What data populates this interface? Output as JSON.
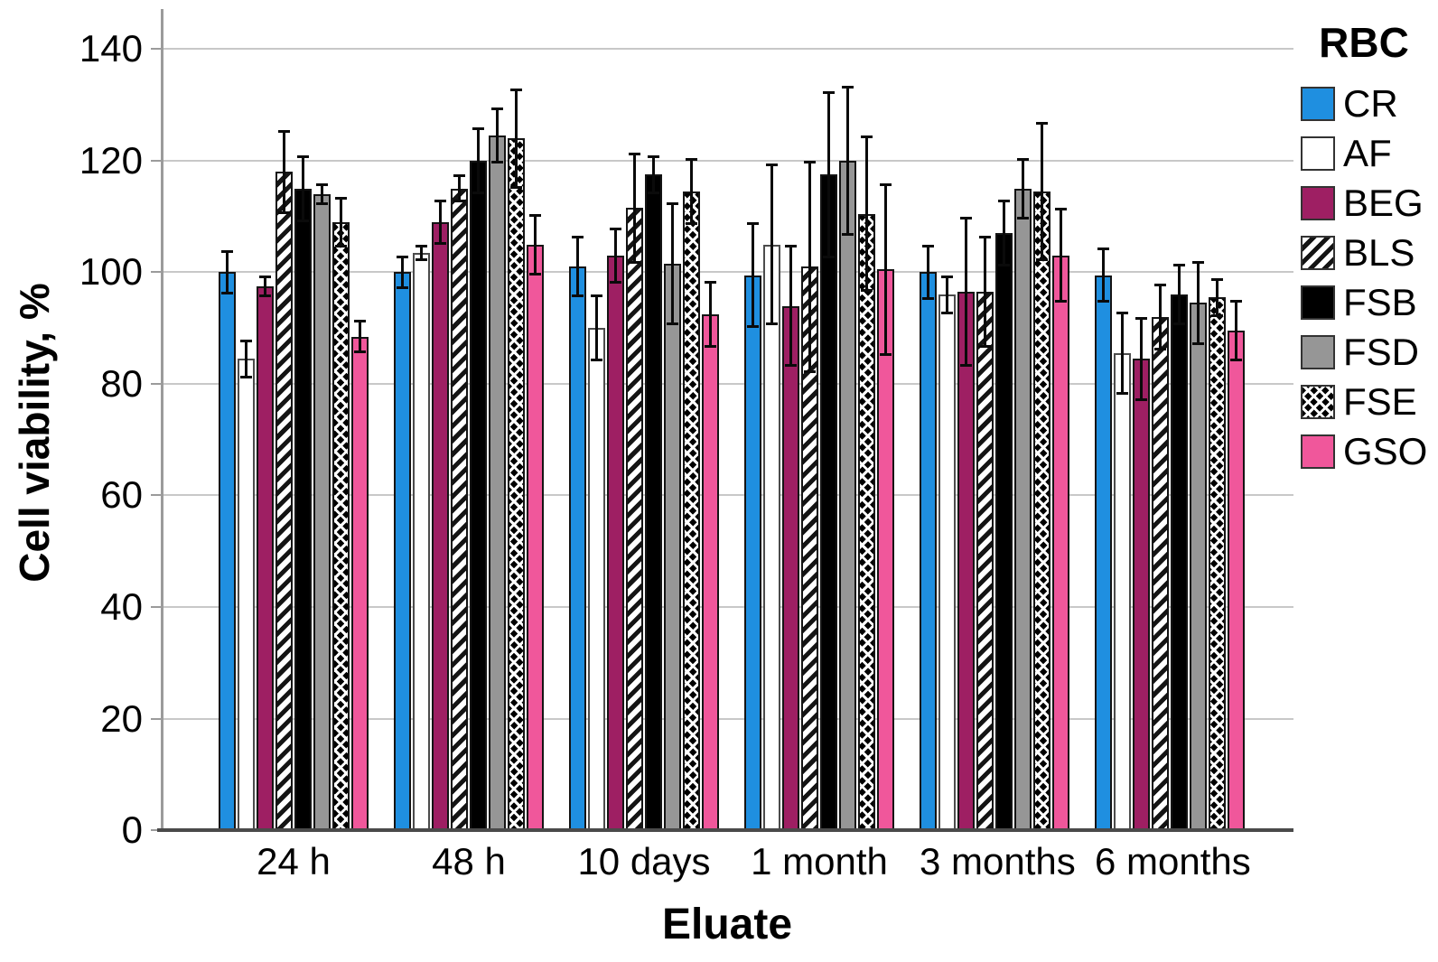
{
  "chart_data": {
    "type": "bar",
    "title": "",
    "xlabel": "Eluate",
    "ylabel": "Cell viability, %",
    "legend_title": "RBC",
    "legend_position": "right",
    "grid": true,
    "ylim": [
      0,
      140
    ],
    "yticks": [
      0,
      20,
      40,
      60,
      80,
      100,
      120,
      140
    ],
    "categories": [
      "24 h",
      "48 h",
      "10 days",
      "1 month",
      "3 months",
      "6 months"
    ],
    "series": [
      {
        "name": "CR",
        "fill": "#1F8FE0",
        "border": "#141414",
        "values": [
          100,
          100,
          101,
          99.5,
          100,
          99.5
        ],
        "errors": [
          4,
          3,
          5.5,
          9.5,
          5,
          5
        ]
      },
      {
        "name": "AF",
        "fill": "#FFFFFF",
        "border": "#4C4C4C",
        "values": [
          84.5,
          103.5,
          90,
          105,
          96,
          85.5
        ],
        "errors": [
          3.5,
          1.5,
          6,
          14.5,
          3.5,
          7.5
        ]
      },
      {
        "name": "BEG",
        "fill": "#9E1F63",
        "border": "#141414",
        "values": [
          97.5,
          109,
          103,
          94,
          96.5,
          84.5
        ],
        "errors": [
          2,
          4,
          5,
          11,
          13.5,
          7.5
        ]
      },
      {
        "name": "BLS",
        "pattern": "diagonal-stripes",
        "border": "#141414",
        "values": [
          118,
          115,
          111.5,
          101,
          96.5,
          92
        ],
        "errors": [
          7.5,
          2.5,
          10,
          19,
          10,
          6
        ]
      },
      {
        "name": "FSB",
        "fill": "#000000",
        "border": "#141414",
        "values": [
          115,
          120,
          117.5,
          117.5,
          107,
          96
        ],
        "errors": [
          6,
          6,
          3.5,
          15,
          6,
          5.5
        ]
      },
      {
        "name": "FSD",
        "fill": "#969696",
        "border": "#141414",
        "values": [
          114,
          124.5,
          101.5,
          120,
          115,
          94.5
        ],
        "errors": [
          2,
          5,
          11,
          13.5,
          5.5,
          7.5
        ]
      },
      {
        "name": "FSE",
        "pattern": "diamond-lattice",
        "border": "#141414",
        "values": [
          109,
          124,
          114.5,
          110.5,
          114.5,
          95.5
        ],
        "errors": [
          4.5,
          9,
          6,
          14,
          12.5,
          3.5
        ]
      },
      {
        "name": "GSO",
        "fill": "#F0579B",
        "border": "#141414",
        "values": [
          88.5,
          105,
          92.5,
          100.5,
          103,
          89.5
        ],
        "errors": [
          3,
          5.5,
          6,
          15.5,
          8.5,
          5.5
        ]
      }
    ]
  }
}
